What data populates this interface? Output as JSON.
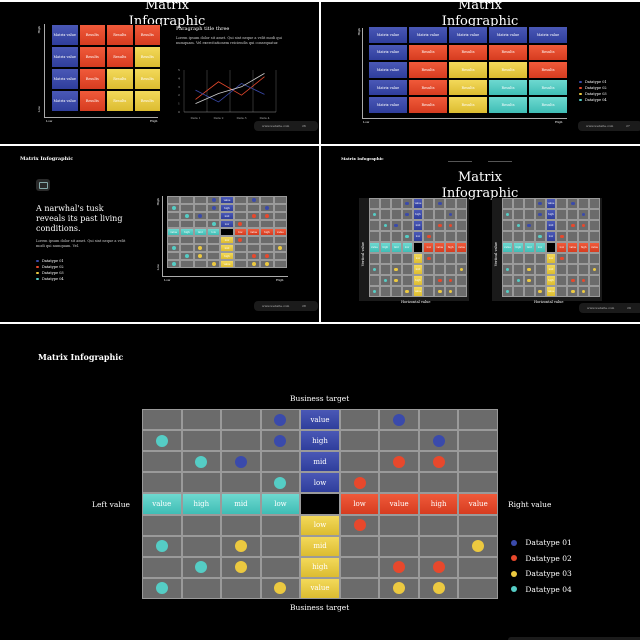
{
  "colors": {
    "blue": "#3a4aab",
    "red": "#e8482c",
    "yellow": "#ecc940",
    "teal": "#55cdc5",
    "grey": "#6b6b6b"
  },
  "slide1": {
    "title": "Matrix\nInfographic",
    "paragraph_title": "Paragraph title three",
    "paragraph_text": "Lorem ipsum dolor sit amet. Qui sint neque a velit modi qui numquam. Vel exercitationem reiciendis qui consequatur.",
    "axis_high": "High",
    "axis_low": "Low",
    "grid": [
      [
        "Matrix value",
        "Results",
        "Results",
        "Results"
      ],
      [
        "Matrix value",
        "Results",
        "Results",
        "Results"
      ],
      [
        "Matrix value",
        "Results",
        "Results",
        "Results"
      ],
      [
        "Matrix value",
        "Results",
        "Results",
        "Results"
      ]
    ],
    "line_chart": {
      "categories": [
        "Data 1",
        "Data 2",
        "Data 3",
        "Data 4"
      ],
      "yticks": [
        "5",
        "4",
        "3",
        "2",
        "1",
        "0"
      ],
      "series": [
        {
          "color": "#e8482c",
          "values": [
            1.5,
            3.6,
            2.0,
            4.2
          ]
        },
        {
          "color": "#3a4aab",
          "values": [
            2.6,
            1.2,
            3.4,
            2.1
          ]
        },
        {
          "color": "#cfcfcf",
          "values": [
            1.0,
            2.2,
            3.0,
            4.6
          ]
        }
      ]
    },
    "footer_url": "www.website.com",
    "footer_page": "26"
  },
  "slide2": {
    "title": "Matrix\nInfographic",
    "axis_high": "High",
    "axis_low": "Low",
    "grid": [
      [
        "Matrix value",
        "Matrix value",
        "Matrix value",
        "Matrix value",
        "Matrix value"
      ],
      [
        "Matrix value",
        "Results",
        "Results",
        "Results",
        "Results"
      ],
      [
        "Matrix value",
        "Results",
        "Results",
        "Results",
        "Results"
      ],
      [
        "Matrix value",
        "Results",
        "Results",
        "Results",
        "Results"
      ],
      [
        "Matrix value",
        "Results",
        "Results",
        "Results",
        "Results"
      ]
    ],
    "legend": [
      "Datatype 01",
      "Datatype 02",
      "Datatype 03",
      "Datatype 04"
    ],
    "footer_url": "www.website.com",
    "footer_page": "27"
  },
  "slide3": {
    "title": "Matrix Infographic",
    "heading": "A narwhal's tusk reveals its past living conditions.",
    "body": "Lorem ipsum dolor sit amet. Qui sint neque a velit modi qui numquam. Vel.",
    "axis_high": "High",
    "axis_low": "Low",
    "legend": [
      "Datatype 01",
      "Datatype 02",
      "Datatype 03",
      "Datatype 04"
    ],
    "footer_url": "www.website.com",
    "footer_page": "28"
  },
  "slide4": {
    "title_small": "Matrix Infographic",
    "title": "Matrix\nInfographic",
    "vertical_label": "Vertical value",
    "horizontal_label": "Horizontal value",
    "footer_url": "www.website.com",
    "footer_page": "29"
  },
  "slide5": {
    "title": "Matrix Infographic",
    "top_label": "Business target",
    "bottom_label": "Business target",
    "left_label": "Left value",
    "right_label": "Right value",
    "vertical_labels": [
      "value",
      "high",
      "mid",
      "low",
      "",
      "low",
      "mid",
      "high",
      "value"
    ],
    "horizontal_labels": [
      "value",
      "high",
      "mid",
      "low",
      "",
      "low",
      "value",
      "high",
      "value"
    ],
    "legend": [
      "Datatype 01",
      "Datatype 02",
      "Datatype 03",
      "Datatype 04"
    ]
  }
}
